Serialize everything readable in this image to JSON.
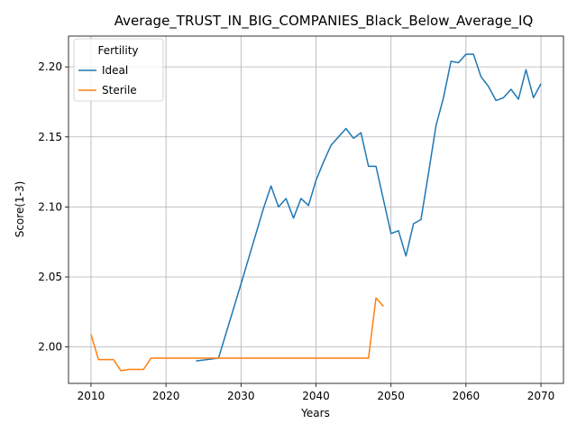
{
  "chart_data": {
    "type": "line",
    "title": "Average_TRUST_IN_BIG_COMPANIES_Black_Below_Average_IQ",
    "xlabel": "Years",
    "ylabel": "Score(1-3)",
    "xlim": [
      2007,
      2073
    ],
    "ylim": [
      1.974,
      2.222
    ],
    "xticks": [
      2010,
      2020,
      2030,
      2040,
      2050,
      2060,
      2070
    ],
    "yticks": [
      2.0,
      2.05,
      2.1,
      2.15,
      2.2
    ],
    "ytick_labels": [
      "2.00",
      "2.05",
      "2.10",
      "2.15",
      "2.20"
    ],
    "grid": true,
    "legend": {
      "title": "Fertility",
      "placement": "top-left"
    },
    "series": [
      {
        "name": "Ideal",
        "color": "#1f77b4",
        "x": [
          2024,
          2027,
          2030,
          2031,
          2032,
          2033,
          2034,
          2035,
          2036,
          2037,
          2038,
          2039,
          2040,
          2041,
          2042,
          2043,
          2044,
          2045,
          2046,
          2047,
          2048,
          2049,
          2050,
          2051,
          2052,
          2053,
          2054,
          2055,
          2056,
          2057,
          2058,
          2059,
          2060,
          2061,
          2062,
          2063,
          2064,
          2065,
          2066,
          2067,
          2068,
          2069,
          2070
        ],
        "y": [
          1.99,
          1.992,
          2.045,
          2.063,
          2.081,
          2.099,
          2.115,
          2.1,
          2.106,
          2.092,
          2.106,
          2.101,
          2.119,
          2.132,
          2.144,
          2.15,
          2.156,
          2.149,
          2.153,
          2.129,
          2.129,
          2.105,
          2.081,
          2.083,
          2.065,
          2.088,
          2.091,
          2.124,
          2.158,
          2.178,
          2.204,
          2.203,
          2.209,
          2.209,
          2.193,
          2.186,
          2.176,
          2.178,
          2.184,
          2.177,
          2.198,
          2.178,
          2.188
        ]
      },
      {
        "name": "Sterile",
        "color": "#ff7f0e",
        "x": [
          2010,
          2011,
          2012,
          2013,
          2014,
          2015,
          2016,
          2017,
          2018,
          2019,
          2020,
          2027,
          2030,
          2040,
          2047,
          2048,
          2049
        ],
        "y": [
          2.009,
          1.991,
          1.991,
          1.991,
          1.983,
          1.984,
          1.984,
          1.984,
          1.992,
          1.992,
          1.992,
          1.992,
          1.992,
          1.992,
          1.992,
          2.035,
          2.029
        ]
      }
    ]
  }
}
